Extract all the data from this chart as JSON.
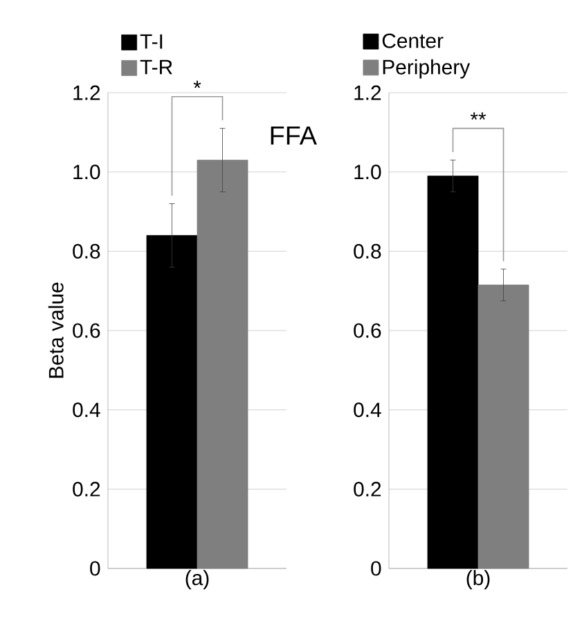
{
  "chart_data": [
    {
      "type": "bar",
      "categories": [
        null
      ],
      "xlabel": "(a)",
      "ylabel": "Beta value",
      "series": [
        {
          "name": "T-I",
          "color": "#000000",
          "values": [
            0.84
          ],
          "errors": [
            0.08
          ]
        },
        {
          "name": "T-R",
          "color": "#7f7f7f",
          "values": [
            1.03
          ],
          "errors": [
            0.08
          ]
        }
      ],
      "ylim": [
        0,
        1.2
      ],
      "yticks": [
        0,
        0.2,
        0.4,
        0.6,
        0.8,
        {
          "value": 1.0,
          "label": "1.0"
        },
        1.2
      ],
      "grid": "y",
      "legend": "top left",
      "annotations": [
        "*",
        "FFA"
      ]
    },
    {
      "type": "bar",
      "categories": [
        null
      ],
      "xlabel": "(b)",
      "series": [
        {
          "name": "Center",
          "color": "#000000",
          "values": [
            0.99
          ],
          "errors": [
            0.04
          ]
        },
        {
          "name": "Periphery",
          "color": "#7f7f7f",
          "values": [
            0.715
          ],
          "errors": [
            0.04
          ]
        }
      ],
      "ylim": [
        0,
        1.2
      ],
      "yticks": [
        0,
        0.2,
        0.4,
        0.6,
        0.8,
        {
          "value": 1.0,
          "label": "1.0"
        },
        1.2
      ],
      "grid": "y",
      "legend": "top left",
      "annotations": [
        "**"
      ]
    }
  ]
}
